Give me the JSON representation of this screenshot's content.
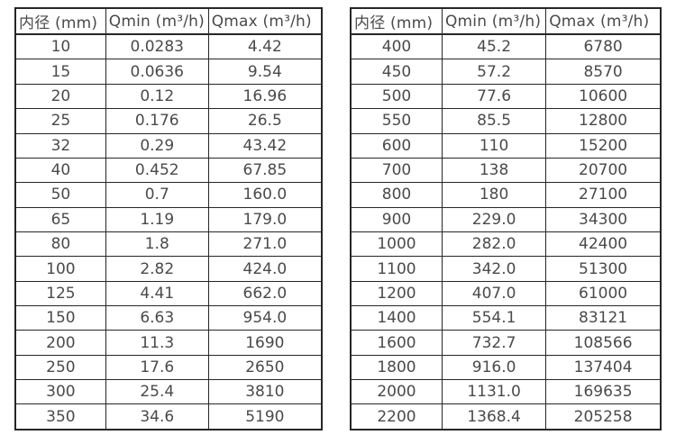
{
  "page": {
    "background_color": "#ffffff",
    "text_color": "#4a4a4a",
    "border_color": "#262626"
  },
  "tables": [
    {
      "name": "flow-spec-table-small-diameters",
      "headers": [
        "内径 (mm)",
        "Qmin (m³/h)",
        "Qmax (m³/h)"
      ],
      "rows": [
        [
          "10",
          "0.0283",
          "4.42"
        ],
        [
          "15",
          "0.0636",
          "9.54"
        ],
        [
          "20",
          "0.12",
          "16.96"
        ],
        [
          "25",
          "0.176",
          "26.5"
        ],
        [
          "32",
          "0.29",
          "43.42"
        ],
        [
          "40",
          "0.452",
          "67.85"
        ],
        [
          "50",
          "0.7",
          "160.0"
        ],
        [
          "65",
          "1.19",
          "179.0"
        ],
        [
          "80",
          "1.8",
          "271.0"
        ],
        [
          "100",
          "2.82",
          "424.0"
        ],
        [
          "125",
          "4.41",
          "662.0"
        ],
        [
          "150",
          "6.63",
          "954.0"
        ],
        [
          "200",
          "11.3",
          "1690"
        ],
        [
          "250",
          "17.6",
          "2650"
        ],
        [
          "300",
          "25.4",
          "3810"
        ],
        [
          "350",
          "34.6",
          "5190"
        ]
      ]
    },
    {
      "name": "flow-spec-table-large-diameters",
      "headers": [
        "内径 (mm)",
        "Qmin (m³/h)",
        "Qmax (m³/h)"
      ],
      "rows": [
        [
          "400",
          "45.2",
          "6780"
        ],
        [
          "450",
          "57.2",
          "8570"
        ],
        [
          "500",
          "77.6",
          "10600"
        ],
        [
          "550",
          "85.5",
          "12800"
        ],
        [
          "600",
          "110",
          "15200"
        ],
        [
          "700",
          "138",
          "20700"
        ],
        [
          "800",
          "180",
          "27100"
        ],
        [
          "900",
          "229.0",
          "34300"
        ],
        [
          "1000",
          "282.0",
          "42400"
        ],
        [
          "1100",
          "342.0",
          "51300"
        ],
        [
          "1200",
          "407.0",
          "61000"
        ],
        [
          "1400",
          "554.1",
          "83121"
        ],
        [
          "1600",
          "732.7",
          "108566"
        ],
        [
          "1800",
          "916.0",
          "137404"
        ],
        [
          "2000",
          "1131.0",
          "169635"
        ],
        [
          "2200",
          "1368.4",
          "205258"
        ]
      ]
    }
  ]
}
